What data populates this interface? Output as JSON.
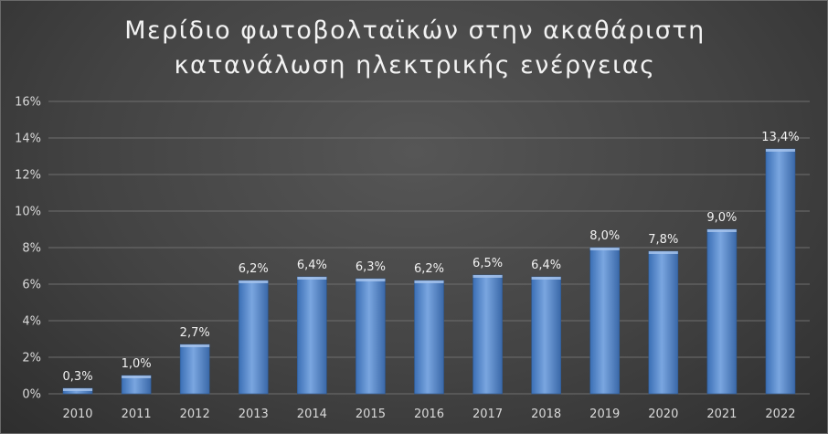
{
  "chart_data": {
    "type": "bar",
    "title_lines": [
      "Μερίδιο φωτοβολταϊκών στην ακαθάριστη",
      "κατανάλωση ηλεκτρικής ενέργειας"
    ],
    "categories": [
      "2010",
      "2011",
      "2012",
      "2013",
      "2014",
      "2015",
      "2016",
      "2017",
      "2018",
      "2019",
      "2020",
      "2021",
      "2022"
    ],
    "values": [
      0.3,
      1.0,
      2.7,
      6.2,
      6.4,
      6.3,
      6.2,
      6.5,
      6.4,
      8.0,
      7.8,
      9.0,
      13.4
    ],
    "data_labels": [
      "0,3%",
      "1,0%",
      "2,7%",
      "6,2%",
      "6,4%",
      "6,3%",
      "6,2%",
      "6,5%",
      "6,4%",
      "8,0%",
      "7,8%",
      "9,0%",
      "13,4%"
    ],
    "ylim": [
      0,
      16
    ],
    "yticks": [
      0,
      2,
      4,
      6,
      8,
      10,
      12,
      14,
      16
    ],
    "ytick_labels": [
      "0%",
      "2%",
      "4%",
      "6%",
      "8%",
      "10%",
      "12%",
      "14%",
      "16%"
    ],
    "grid": true,
    "bar_color": "#4f81bd"
  }
}
